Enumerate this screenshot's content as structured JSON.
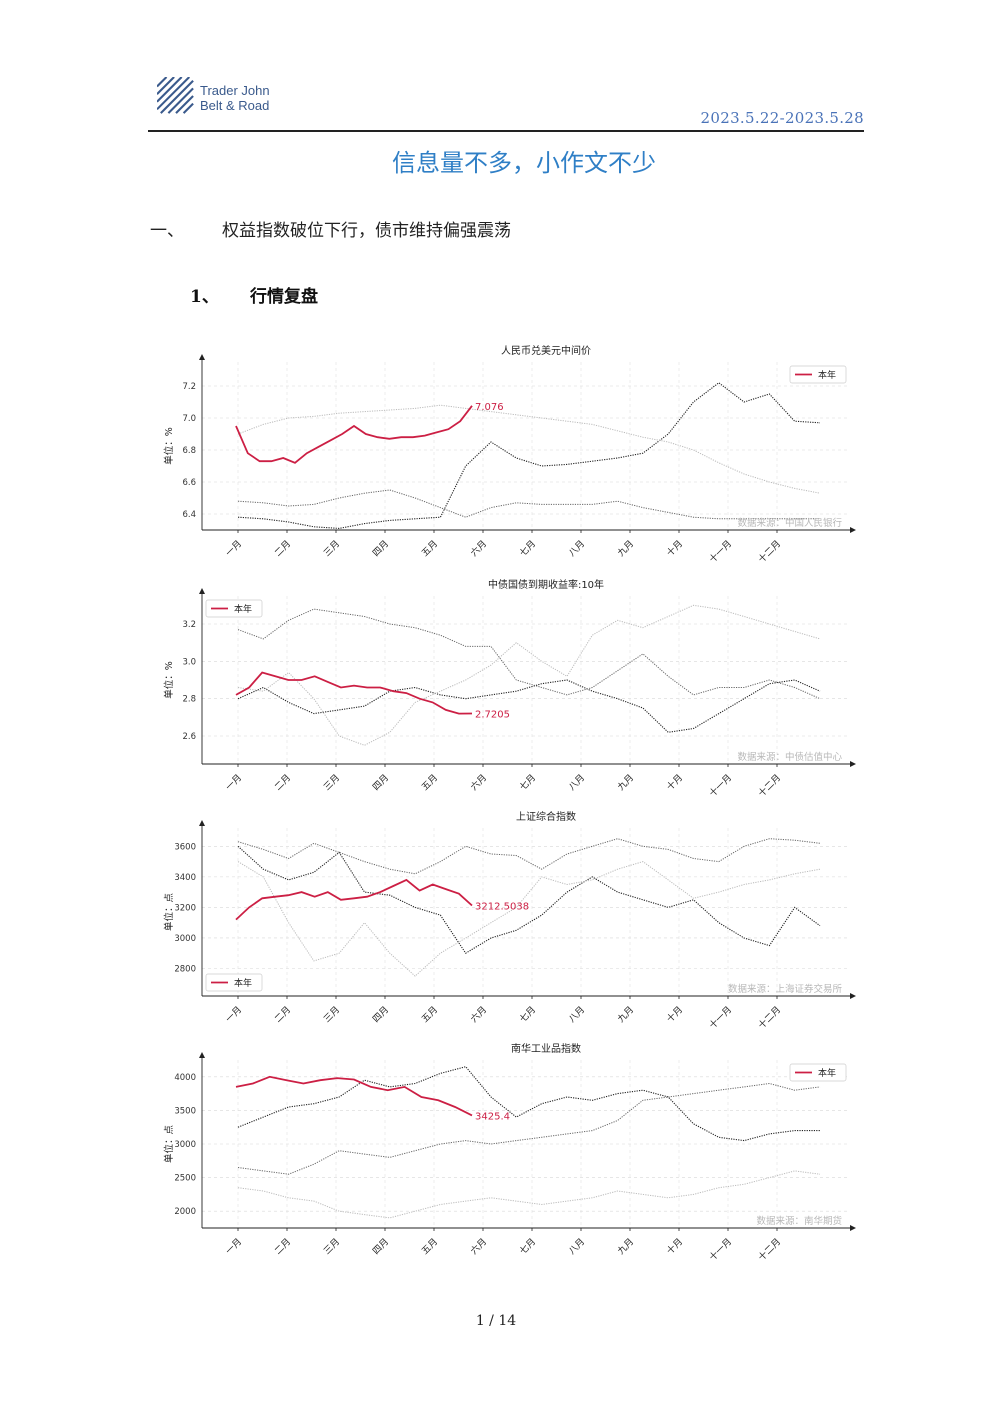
{
  "header": {
    "brand_line1": "Trader John",
    "brand_line2": "Belt & Road",
    "date_range": "2023.5.22-2023.5.28",
    "accent": "#2f7fc6"
  },
  "title": "信息量不多，小作文不少",
  "section1": {
    "num": "一、",
    "text": "权益指数破位下行，债市维持偏强震荡"
  },
  "section2": {
    "num": "1、",
    "text": "行情复盘"
  },
  "footer": {
    "page": "1 / 14"
  },
  "chart_data": [
    {
      "type": "line",
      "title": "人民币兑美元中间价",
      "ylabel": "单位：%",
      "yticks": [
        "6.4",
        "6.6",
        "6.8",
        "7.0",
        "7.2"
      ],
      "ylim": [
        6.3,
        7.35
      ],
      "months": [
        "一月",
        "二月",
        "三月",
        "四月",
        "五月",
        "六月",
        "七月",
        "八月",
        "九月",
        "十月",
        "十一月",
        "十二月"
      ],
      "legend": "本年",
      "legend_position": "top-right",
      "source": "数据来源：中国人民银行",
      "current_label": "7.076",
      "highlight_color": "#cc1f44",
      "series_current": [
        6.95,
        6.78,
        6.73,
        6.73,
        6.75,
        6.72,
        6.78,
        6.82,
        6.86,
        6.9,
        6.95,
        6.9,
        6.88,
        6.87,
        6.88,
        6.88,
        6.89,
        6.91,
        6.93,
        6.98,
        7.076
      ],
      "series_other": [
        [
          6.38,
          6.37,
          6.35,
          6.32,
          6.31,
          6.34,
          6.36,
          6.37,
          6.38,
          6.7,
          6.85,
          6.75,
          6.7,
          6.71,
          6.73,
          6.75,
          6.78,
          6.9,
          7.1,
          7.22,
          7.1,
          7.15,
          6.98,
          6.97
        ],
        [
          6.48,
          6.47,
          6.45,
          6.46,
          6.5,
          6.53,
          6.55,
          6.5,
          6.44,
          6.38,
          6.44,
          6.47,
          6.46,
          6.46,
          6.46,
          6.48,
          6.44,
          6.41,
          6.38,
          6.37,
          6.37,
          6.37,
          6.37,
          6.37
        ],
        [
          6.9,
          6.96,
          7.0,
          7.01,
          7.03,
          7.04,
          7.05,
          7.06,
          7.08,
          7.06,
          7.04,
          7.02,
          7.0,
          6.98,
          6.96,
          6.92,
          6.88,
          6.85,
          6.8,
          6.72,
          6.65,
          6.6,
          6.56,
          6.53
        ]
      ]
    },
    {
      "type": "line",
      "title": "中债国债到期收益率:10年",
      "ylabel": "单位：%",
      "yticks": [
        "2.6",
        "2.8",
        "3.0",
        "3.2"
      ],
      "ylim": [
        2.45,
        3.35
      ],
      "months": [
        "一月",
        "二月",
        "三月",
        "四月",
        "五月",
        "六月",
        "七月",
        "八月",
        "九月",
        "十月",
        "十一月",
        "十二月"
      ],
      "legend": "本年",
      "legend_position": "top-left",
      "source": "数据来源：中债估值中心",
      "current_label": "2.7205",
      "highlight_color": "#cc1f44",
      "series_current": [
        2.82,
        2.86,
        2.94,
        2.92,
        2.9,
        2.9,
        2.92,
        2.89,
        2.86,
        2.87,
        2.86,
        2.86,
        2.84,
        2.83,
        2.8,
        2.78,
        2.74,
        2.72,
        2.7205
      ],
      "series_other": [
        [
          2.8,
          2.86,
          2.78,
          2.72,
          2.74,
          2.76,
          2.84,
          2.86,
          2.82,
          2.8,
          2.82,
          2.84,
          2.88,
          2.9,
          2.84,
          2.8,
          2.75,
          2.62,
          2.64,
          2.72,
          2.8,
          2.88,
          2.9,
          2.84
        ],
        [
          3.17,
          3.12,
          3.22,
          3.28,
          3.26,
          3.24,
          3.2,
          3.18,
          3.14,
          3.08,
          3.08,
          2.9,
          2.86,
          2.82,
          2.86,
          2.95,
          3.04,
          2.92,
          2.82,
          2.86,
          2.86,
          2.9,
          2.86,
          2.8
        ],
        [
          2.86,
          2.84,
          2.94,
          2.8,
          2.6,
          2.55,
          2.62,
          2.78,
          2.84,
          2.9,
          2.98,
          3.1,
          3.0,
          2.92,
          3.14,
          3.22,
          3.18,
          3.24,
          3.3,
          3.28,
          3.24,
          3.2,
          3.16,
          3.12
        ]
      ]
    },
    {
      "type": "line",
      "title": "上证综合指数",
      "ylabel": "单位：点",
      "yticks": [
        "2800",
        "3000",
        "3200",
        "3400",
        "3600"
      ],
      "ylim": [
        2620,
        3720
      ],
      "months": [
        "一月",
        "二月",
        "三月",
        "四月",
        "五月",
        "六月",
        "七月",
        "八月",
        "九月",
        "十月",
        "十一月",
        "十二月"
      ],
      "legend": "本年",
      "legend_position": "bottom-left",
      "source": "数据来源：上海证券交易所",
      "current_label": "3212.5038",
      "highlight_color": "#cc1f44",
      "series_current": [
        3120,
        3200,
        3260,
        3270,
        3280,
        3300,
        3270,
        3300,
        3250,
        3260,
        3270,
        3300,
        3340,
        3380,
        3310,
        3350,
        3320,
        3290,
        3212.5038
      ],
      "series_other": [
        [
          3600,
          3450,
          3380,
          3430,
          3560,
          3300,
          3280,
          3200,
          3150,
          2900,
          3000,
          3050,
          3150,
          3300,
          3400,
          3300,
          3250,
          3200,
          3250,
          3100,
          3000,
          2950,
          3200,
          3080
        ],
        [
          3630,
          3580,
          3520,
          3620,
          3560,
          3500,
          3450,
          3420,
          3500,
          3600,
          3550,
          3540,
          3450,
          3550,
          3600,
          3650,
          3600,
          3580,
          3520,
          3500,
          3600,
          3650,
          3640,
          3620
        ],
        [
          3500,
          3400,
          3100,
          2850,
          2900,
          3100,
          2900,
          2750,
          2900,
          3000,
          3100,
          3200,
          3400,
          3350,
          3380,
          3450,
          3500,
          3380,
          3260,
          3300,
          3350,
          3380,
          3420,
          3450
        ]
      ]
    },
    {
      "type": "line",
      "title": "南华工业品指数",
      "ylabel": "单位：点",
      "yticks": [
        "2000",
        "2500",
        "3000",
        "3500",
        "4000"
      ],
      "ylim": [
        1750,
        4250
      ],
      "months": [
        "一月",
        "二月",
        "三月",
        "四月",
        "五月",
        "六月",
        "七月",
        "八月",
        "九月",
        "十月",
        "十一月",
        "十二月"
      ],
      "legend": "本年",
      "legend_position": "top-right",
      "source": "数据来源：南华期货",
      "current_label": "3425.4",
      "highlight_color": "#cc1f44",
      "series_current": [
        3850,
        3900,
        4000,
        3950,
        3900,
        3950,
        3980,
        3960,
        3850,
        3800,
        3850,
        3700,
        3650,
        3550,
        3425.4
      ],
      "series_other": [
        [
          3250,
          3400,
          3550,
          3600,
          3700,
          3950,
          3850,
          3900,
          4050,
          4150,
          3700,
          3400,
          3600,
          3700,
          3650,
          3750,
          3800,
          3700,
          3300,
          3100,
          3050,
          3150,
          3200,
          3200
        ],
        [
          2650,
          2600,
          2550,
          2700,
          2900,
          2850,
          2800,
          2900,
          3000,
          3050,
          3000,
          3050,
          3100,
          3150,
          3200,
          3350,
          3650,
          3700,
          3750,
          3800,
          3850,
          3900,
          3800,
          3850
        ],
        [
          2350,
          2300,
          2200,
          2150,
          2000,
          1950,
          1900,
          2000,
          2100,
          2150,
          2200,
          2150,
          2100,
          2150,
          2200,
          2300,
          2250,
          2200,
          2250,
          2350,
          2400,
          2500,
          2600,
          2550
        ]
      ]
    }
  ]
}
